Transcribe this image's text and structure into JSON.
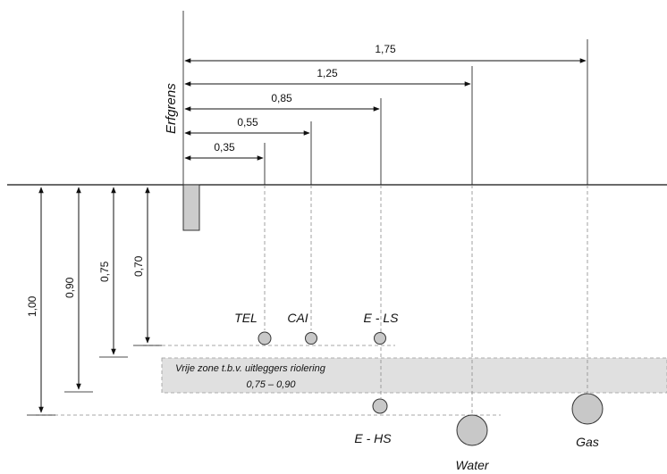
{
  "property_boundary_label": "Erfgrens",
  "horizontal_distances": [
    "1,75",
    "1,25",
    "0,85",
    "0,55",
    "0,35"
  ],
  "depths": [
    "1,00",
    "0,90",
    "0,75",
    "0,70"
  ],
  "free_zone": {
    "line1": "Vrije zone t.b.v. uitleggers riolering",
    "line2": "0,75 – 0,90"
  },
  "cables": {
    "tel": "TEL",
    "cai": "CAI",
    "e_ls": "E - LS",
    "e_hs": "E - HS",
    "water": "Water",
    "gas": "Gas"
  },
  "colors": {
    "pipe_fill": "#c8c8c8",
    "zone_fill": "#e0e0e0",
    "line": "#111111"
  }
}
